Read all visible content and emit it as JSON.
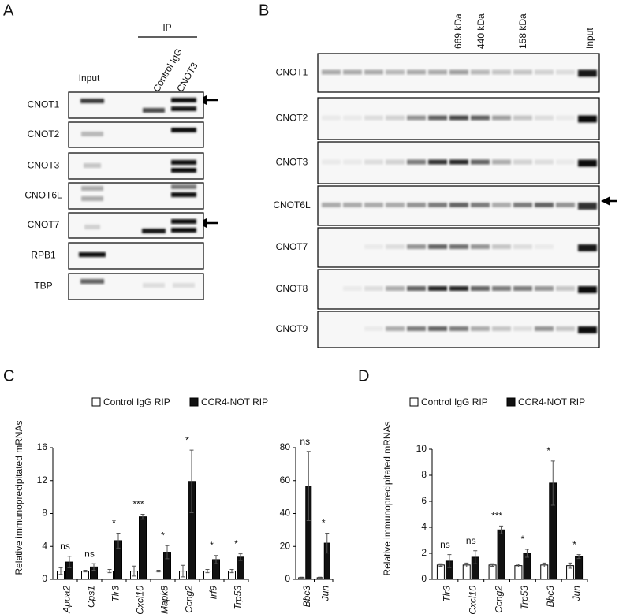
{
  "blot_a": {
    "label": "A",
    "ip": "IP",
    "lanes": [
      "Input",
      "Control IgG",
      "CNOT3"
    ],
    "rows": [
      "CNOT1",
      "CNOT2",
      "CNOT3",
      "CNOT6L",
      "CNOT7",
      "RPB1",
      "TBP"
    ]
  },
  "blot_b": {
    "label": "B",
    "markers": [
      "669 kDa",
      "440 kDa",
      "158 kDa",
      "Input"
    ],
    "rows": [
      "CNOT1",
      "CNOT2",
      "CNOT3",
      "CNOT6L",
      "CNOT7",
      "CNOT8",
      "CNOT9"
    ]
  },
  "panel_labels": [
    "C",
    "D"
  ],
  "chart_data": [
    {
      "type": "bar",
      "ylabel": "Relative immunoprecipitated mRNAs",
      "categories": [
        "Apoa2",
        "Cps1",
        "Tlr3",
        "Cxcl10",
        "Mapk8",
        "Ccng2",
        "Irf9",
        "Trp53"
      ],
      "series": [
        {
          "name": "Control IgG RIP",
          "color": "#ffffff",
          "values": [
            1,
            1,
            1,
            1,
            1,
            1,
            1,
            1
          ],
          "errors": [
            0.4,
            0.1,
            0.2,
            0.6,
            0.1,
            0.7,
            0.2,
            0.2
          ]
        },
        {
          "name": "CCR4-NOT RIP",
          "color": "#111111",
          "values": [
            2.1,
            1.5,
            4.7,
            7.6,
            3.3,
            11.9,
            2.4,
            2.7
          ],
          "errors": [
            0.7,
            0.4,
            0.9,
            0.3,
            0.8,
            3.8,
            0.5,
            0.4
          ]
        }
      ],
      "annotations": [
        "ns",
        "ns",
        "*",
        "***",
        "*",
        "*",
        "*",
        "*"
      ],
      "ylim": [
        0,
        16
      ],
      "yticks": [
        0,
        4,
        8,
        12,
        16
      ]
    },
    {
      "type": "bar",
      "categories": [
        "Bbc3",
        "Jun"
      ],
      "series": [
        {
          "color": "#ffffff",
          "values": [
            1,
            1
          ],
          "errors": [
            0.3,
            0.3
          ]
        },
        {
          "color": "#111111",
          "values": [
            56.7,
            22
          ],
          "errors": [
            21,
            6
          ]
        }
      ],
      "annotations": [
        "ns",
        "*"
      ],
      "ylim": [
        0,
        80
      ],
      "yticks": [
        0,
        20,
        40,
        60,
        80
      ]
    },
    {
      "type": "bar",
      "ylabel": "Relative immunoprecipitated mRNAs",
      "categories": [
        "Tlr3",
        "Cxcl10",
        "Ccng2",
        "Trp53",
        "Bbc3",
        "Jun"
      ],
      "series": [
        {
          "name": "Control IgG RIP",
          "color": "#ffffff",
          "values": [
            1.1,
            1.1,
            1.1,
            1.05,
            1.1,
            1.05
          ],
          "errors": [
            0.1,
            0.15,
            0.1,
            0.1,
            0.15,
            0.2
          ]
        },
        {
          "name": "CCR4-NOT RIP",
          "color": "#111111",
          "values": [
            1.4,
            1.7,
            3.8,
            2.0,
            7.4,
            1.75
          ],
          "errors": [
            0.5,
            0.5,
            0.3,
            0.3,
            1.7,
            0.15
          ]
        }
      ],
      "annotations": [
        "ns",
        "ns",
        "***",
        "*",
        "*",
        "*"
      ],
      "ylim": [
        0,
        10
      ],
      "yticks": [
        0,
        2,
        4,
        6,
        8,
        10
      ]
    }
  ]
}
